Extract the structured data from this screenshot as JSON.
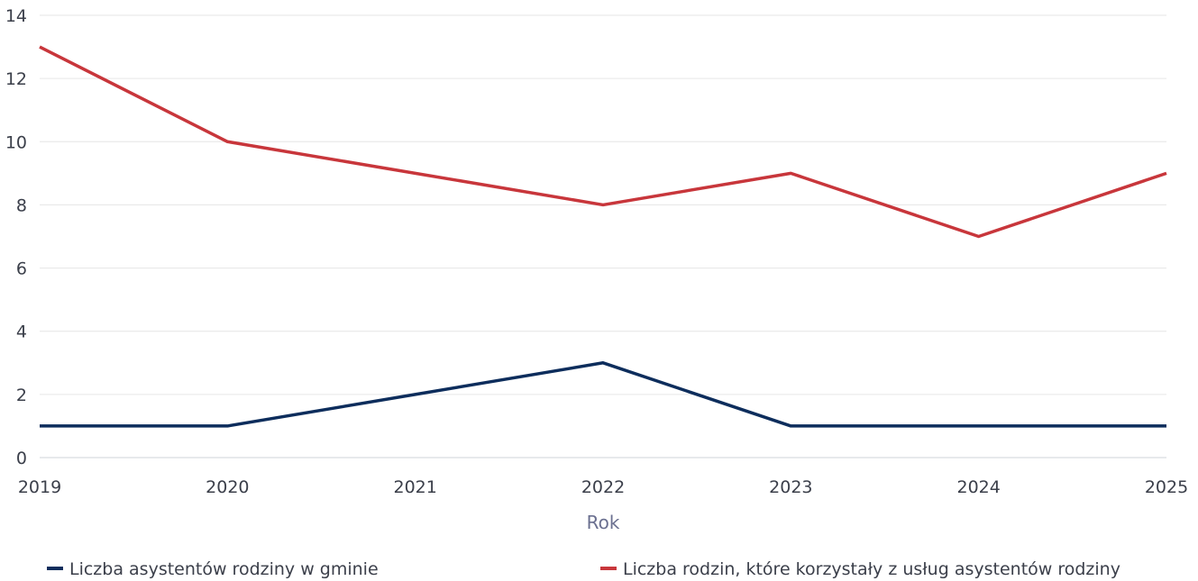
{
  "chart_data": {
    "type": "line",
    "xlabel": "Rok",
    "ylabel": "",
    "x": [
      "2019",
      "2020",
      "2021",
      "2022",
      "2023",
      "2024",
      "2025"
    ],
    "ylim": [
      0,
      14
    ],
    "yticks": [
      "0",
      "2",
      "4",
      "6",
      "8",
      "10",
      "12",
      "14"
    ],
    "grid": true,
    "legend_position": "bottom",
    "series": [
      {
        "name": "Liczba asystentów rodziny w gminie",
        "color": "#0d2d5c",
        "values": [
          1,
          1,
          2,
          3,
          1,
          1,
          1
        ]
      },
      {
        "name": "Liczba rodzin, które korzystały z usług asystentów rodziny",
        "color": "#c8363b",
        "values": [
          13,
          10,
          9,
          8,
          9,
          7,
          9
        ]
      }
    ]
  }
}
